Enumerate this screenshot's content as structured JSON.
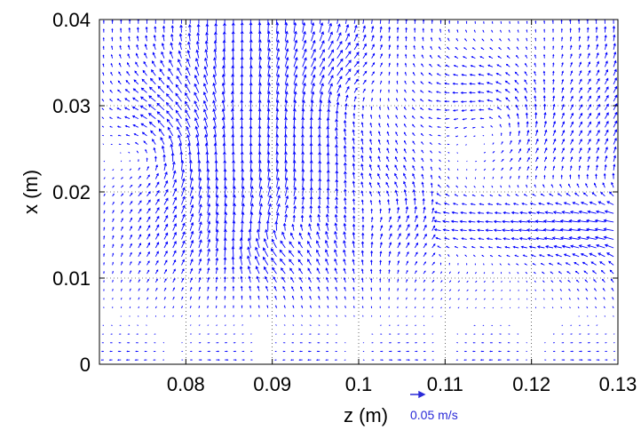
{
  "chart_data": {
    "type": "quiver",
    "xlabel": "z (m)",
    "ylabel": "x (m)",
    "xlim": [
      0.07,
      0.13
    ],
    "ylim": [
      0,
      0.04
    ],
    "xticks": [
      0.08,
      0.09,
      0.1,
      0.11,
      0.12,
      0.13
    ],
    "xtick_labels": [
      "0.08",
      "0.09",
      "0.1",
      "0.11",
      "0.12",
      "0.13"
    ],
    "yticks": [
      0,
      0.01,
      0.02,
      0.03,
      0.04
    ],
    "ytick_labels": [
      "0",
      "0.01",
      "0.02",
      "0.03",
      "0.04"
    ],
    "grid": "dotted",
    "arrow_color": "#0000ff",
    "reference_vector": {
      "value": 0.05,
      "label": "0.05  m/s",
      "units": "m/s"
    },
    "vector_field": {
      "z_range": [
        0.0705,
        0.1295
      ],
      "x_range": [
        0.0005,
        0.0395
      ],
      "nz": 60,
      "nx": 40,
      "description_regions": [
        {
          "z": [
            0.07,
            0.13
          ],
          "x": [
            0.02,
            0.04
          ],
          "flow": "mostly upward with vortex cells near z=0.09 and z=0.105"
        },
        {
          "z": [
            0.085,
            0.095
          ],
          "x": [
            0.01,
            0.02
          ],
          "flow": "clockwise recirculation"
        },
        {
          "z": [
            0.11,
            0.13
          ],
          "x": [
            0.012,
            0.02
          ],
          "flow": "leftward jet"
        },
        {
          "z": [
            0.07,
            0.13
          ],
          "x": [
            0,
            0.006
          ],
          "flow": "weak horizontal flow"
        }
      ]
    }
  }
}
